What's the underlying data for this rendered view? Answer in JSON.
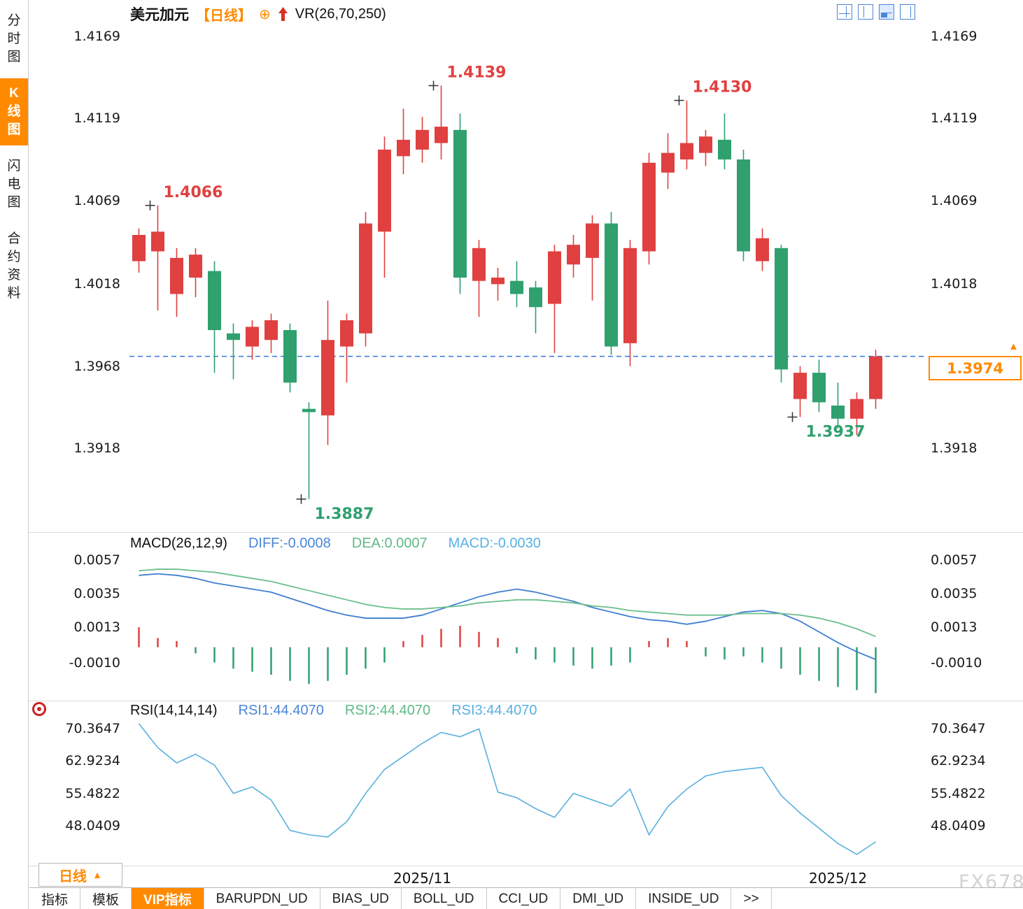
{
  "header": {
    "symbol": "美元加元",
    "period_tag": "【日线】",
    "plus_glyph": "⊕",
    "indicator": "VR(26,70,250)",
    "layout_icons": [
      "quad-layout-icon",
      "left-split-layout-icon",
      "bottom-split-layout-icon",
      "right-split-layout-icon"
    ],
    "active_layout_icon": 2
  },
  "sidebar": {
    "items": [
      {
        "label": "分时图",
        "active": false
      },
      {
        "label": "K线图",
        "active": true
      },
      {
        "label": "闪电图",
        "active": false
      },
      {
        "label": "合约资料",
        "active": false
      }
    ]
  },
  "price_tag": {
    "value": "1.3974",
    "arrow": "▲"
  },
  "macd_header": {
    "title": "MACD(26,12,9)",
    "diff_label": "DIFF:-0.0008",
    "dea_label": "DEA:0.0007",
    "macd_label": "MACD:-0.0030"
  },
  "rsi_header": {
    "title": "RSI(14,14,14)",
    "rsi1_label": "RSI1:44.4070",
    "rsi2_label": "RSI2:44.4070",
    "rsi3_label": "RSI3:44.4070"
  },
  "footer": {
    "period": "日线",
    "period_arrow": "▲",
    "tabs": [
      {
        "label": "指标",
        "active": false
      },
      {
        "label": "模板",
        "active": false
      },
      {
        "label": "VIP指标",
        "active": true
      },
      {
        "label": "BARUPDN_UD",
        "active": false
      },
      {
        "label": "BIAS_UD",
        "active": false
      },
      {
        "label": "BOLL_UD",
        "active": false
      },
      {
        "label": "CCI_UD",
        "active": false
      },
      {
        "label": "DMI_UD",
        "active": false
      },
      {
        "label": "INSIDE_UD",
        "active": false
      },
      {
        "label": ">>",
        "active": false
      }
    ]
  },
  "watermark": "FX678",
  "colors": {
    "up": "#e04040",
    "down": "#2fa06e",
    "diff_line": "#3f7fd0",
    "dea_line": "#6cbf8e",
    "rsi_line": "#58b0dd",
    "dashed_line": "#3377dd",
    "accent_orange": "#ff8a00",
    "cross_marker": "#333333"
  },
  "chart_data": {
    "type": "candlestick",
    "title": "美元加元 日线 (USD/CAD daily)",
    "price_axis_ticks": [
      1.4169,
      1.4119,
      1.4069,
      1.4018,
      1.3968,
      1.3918
    ],
    "last_price": 1.3974,
    "x_labels": [
      {
        "text": "2025/11",
        "index": 15
      },
      {
        "text": "2025/12",
        "index": 37
      }
    ],
    "candles": [
      [
        1.4032,
        1.4052,
        1.4025,
        1.4048
      ],
      [
        1.4038,
        1.4066,
        1.4002,
        1.405
      ],
      [
        1.4012,
        1.404,
        1.3998,
        1.4034
      ],
      [
        1.4022,
        1.404,
        1.401,
        1.4036
      ],
      [
        1.4026,
        1.4032,
        1.3964,
        1.399
      ],
      [
        1.3988,
        1.3994,
        1.396,
        1.3984
      ],
      [
        1.398,
        1.3996,
        1.3972,
        1.3992
      ],
      [
        1.3984,
        1.4,
        1.3976,
        1.3996
      ],
      [
        1.399,
        1.3994,
        1.3952,
        1.3958
      ],
      [
        1.3942,
        1.3946,
        1.3887,
        1.394
      ],
      [
        1.3938,
        1.4008,
        1.392,
        1.3984
      ],
      [
        1.398,
        1.4,
        1.3958,
        1.3996
      ],
      [
        1.3988,
        1.4062,
        1.398,
        1.4055
      ],
      [
        1.405,
        1.4108,
        1.4022,
        1.41
      ],
      [
        1.4096,
        1.4125,
        1.4085,
        1.4106
      ],
      [
        1.41,
        1.412,
        1.4092,
        1.4112
      ],
      [
        1.4104,
        1.4139,
        1.4094,
        1.4114
      ],
      [
        1.4112,
        1.4122,
        1.4012,
        1.4022
      ],
      [
        1.402,
        1.4045,
        1.3998,
        1.404
      ],
      [
        1.4018,
        1.4028,
        1.4008,
        1.4022
      ],
      [
        1.402,
        1.4032,
        1.4004,
        1.4012
      ],
      [
        1.4016,
        1.402,
        1.3988,
        1.4004
      ],
      [
        1.4006,
        1.4042,
        1.3976,
        1.4038
      ],
      [
        1.403,
        1.4048,
        1.4022,
        1.4042
      ],
      [
        1.4034,
        1.406,
        1.4008,
        1.4055
      ],
      [
        1.4055,
        1.4062,
        1.3975,
        1.398
      ],
      [
        1.3982,
        1.4045,
        1.3968,
        1.404
      ],
      [
        1.4038,
        1.4098,
        1.403,
        1.4092
      ],
      [
        1.4086,
        1.411,
        1.4076,
        1.4098
      ],
      [
        1.4094,
        1.413,
        1.4088,
        1.4104
      ],
      [
        1.4098,
        1.4112,
        1.409,
        1.4108
      ],
      [
        1.4106,
        1.4122,
        1.4088,
        1.4094
      ],
      [
        1.4094,
        1.41,
        1.4032,
        1.4038
      ],
      [
        1.4032,
        1.4052,
        1.4026,
        1.4046
      ],
      [
        1.404,
        1.4042,
        1.3958,
        1.3966
      ],
      [
        1.3948,
        1.3968,
        1.3937,
        1.3964
      ],
      [
        1.3964,
        1.3972,
        1.394,
        1.3946
      ],
      [
        1.3944,
        1.3958,
        1.393,
        1.3936
      ],
      [
        1.3936,
        1.3952,
        1.3926,
        1.3948
      ],
      [
        1.3948,
        1.3978,
        1.3942,
        1.3974
      ]
    ],
    "annotations": [
      {
        "index": 1,
        "text": "1.4066",
        "at": "high",
        "color": "red"
      },
      {
        "index": 9,
        "text": "1.3887",
        "at": "low",
        "color": "green"
      },
      {
        "index": 16,
        "text": "1.4139",
        "at": "high",
        "color": "red"
      },
      {
        "index": 29,
        "text": "1.4130",
        "at": "high",
        "color": "red"
      },
      {
        "index": 35,
        "text": "1.3937",
        "at": "low",
        "color": "green"
      }
    ],
    "macd": {
      "axis_ticks": [
        0.0057,
        0.0035,
        0.0013,
        -0.001
      ],
      "diff": [
        0.0047,
        0.0048,
        0.0047,
        0.0045,
        0.0042,
        0.004,
        0.0038,
        0.0036,
        0.0032,
        0.0028,
        0.0024,
        0.0021,
        0.0019,
        0.0019,
        0.0019,
        0.0021,
        0.0025,
        0.0029,
        0.0033,
        0.0036,
        0.0038,
        0.0036,
        0.0033,
        0.003,
        0.0026,
        0.0023,
        0.002,
        0.0018,
        0.0017,
        0.0015,
        0.0017,
        0.002,
        0.0023,
        0.0024,
        0.0022,
        0.0017,
        0.001,
        0.0003,
        -0.0003,
        -0.0008
      ],
      "dea": [
        0.005,
        0.0051,
        0.0051,
        0.005,
        0.0049,
        0.0047,
        0.0045,
        0.0043,
        0.004,
        0.0037,
        0.0034,
        0.0031,
        0.0028,
        0.0026,
        0.0025,
        0.0025,
        0.0026,
        0.0027,
        0.0029,
        0.003,
        0.0031,
        0.0031,
        0.003,
        0.0029,
        0.0027,
        0.0026,
        0.0024,
        0.0023,
        0.0022,
        0.0021,
        0.0021,
        0.0021,
        0.0022,
        0.0022,
        0.0022,
        0.0021,
        0.0019,
        0.0016,
        0.0012,
        0.0007
      ],
      "hist": [
        0.0013,
        0.0006,
        0.0004,
        -0.0004,
        -0.001,
        -0.0014,
        -0.0016,
        -0.0018,
        -0.0022,
        -0.0024,
        -0.0022,
        -0.0018,
        -0.0014,
        -0.001,
        0.0004,
        0.0008,
        0.0012,
        0.0014,
        0.001,
        0.0006,
        -0.0004,
        -0.0008,
        -0.001,
        -0.0012,
        -0.0014,
        -0.0012,
        -0.001,
        0.0004,
        0.0006,
        0.0004,
        -0.0006,
        -0.0008,
        -0.0006,
        -0.001,
        -0.0014,
        -0.0018,
        -0.0022,
        -0.0026,
        -0.0028,
        -0.003
      ]
    },
    "rsi": {
      "axis_ticks": [
        70.3647,
        62.9234,
        55.4822,
        48.0409
      ],
      "values": [
        71.5,
        66.0,
        62.5,
        64.5,
        62.0,
        55.5,
        57.0,
        54.0,
        47.0,
        46.0,
        45.5,
        49.0,
        55.5,
        61.0,
        64.0,
        67.0,
        69.5,
        68.5,
        70.3,
        55.8,
        54.5,
        52.0,
        50.0,
        55.5,
        54.0,
        52.5,
        56.5,
        46.0,
        52.5,
        56.5,
        59.5,
        60.5,
        61.0,
        61.5,
        55.0,
        51.0,
        47.5,
        44.0,
        41.5,
        44.4
      ]
    }
  }
}
